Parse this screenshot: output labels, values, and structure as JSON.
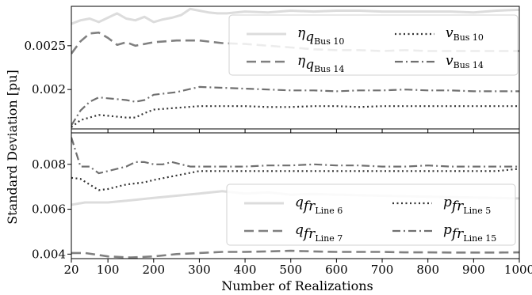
{
  "chart_data": {
    "type": "line",
    "xlabel": "Number of Realizations",
    "ylabel": "Standard Deviation [pu]",
    "xlim": [
      20,
      1000
    ],
    "xticks": [
      20,
      100,
      200,
      300,
      400,
      500,
      600,
      700,
      800,
      900,
      1000
    ],
    "panels": [
      {
        "id": "top",
        "ylim": [
          0.00155,
          0.00295
        ],
        "yticks": [
          {
            "value": 0.0025,
            "label": "0.0025"
          },
          {
            "value": 0.002,
            "label": "0.002"
          }
        ],
        "legend": {
          "placement": "upper-right",
          "columns": 2
        },
        "series": [
          {
            "main": "η",
            "sub": "q",
            "subsub": "Bus 10",
            "style": "solid",
            "color": "#dcdcdc",
            "x": [
              20,
              40,
              60,
              80,
              100,
              120,
              140,
              160,
              180,
              200,
              220,
              240,
              260,
              280,
              300,
              320,
              340,
              360,
              380,
              400,
              450,
              500,
              550,
              600,
              650,
              700,
              750,
              800,
              850,
              900,
              950,
              1000
            ],
            "y": [
              0.00275,
              0.00279,
              0.00281,
              0.00277,
              0.00282,
              0.00287,
              0.00281,
              0.00279,
              0.00283,
              0.00277,
              0.0028,
              0.00282,
              0.00285,
              0.00292,
              0.0029,
              0.00288,
              0.00287,
              0.00287,
              0.00288,
              0.00289,
              0.00288,
              0.0029,
              0.00289,
              0.0029,
              0.0029,
              0.00289,
              0.00289,
              0.00289,
              0.00289,
              0.00288,
              0.0029,
              0.00291
            ]
          },
          {
            "main": "v",
            "sub": "Bus 10",
            "subsub": "",
            "style": "dotted",
            "color": "#333333",
            "x": [
              20,
              40,
              60,
              80,
              100,
              120,
              140,
              160,
              180,
              200,
              250,
              300,
              350,
              400,
              450,
              500,
              550,
              600,
              650,
              700,
              750,
              800,
              850,
              900,
              950,
              1000
            ],
            "y": [
              0.00157,
              0.00165,
              0.00168,
              0.00171,
              0.0017,
              0.00169,
              0.00168,
              0.00168,
              0.00173,
              0.00177,
              0.00179,
              0.00181,
              0.00181,
              0.00181,
              0.0018,
              0.0018,
              0.00181,
              0.00181,
              0.0018,
              0.00181,
              0.00181,
              0.00181,
              0.00181,
              0.00181,
              0.00181,
              0.00181
            ]
          },
          {
            "main": "η",
            "sub": "q",
            "subsub": "Bus 14",
            "style": "dashed",
            "color": "#808080",
            "x": [
              20,
              40,
              60,
              80,
              100,
              120,
              140,
              160,
              180,
              200,
              250,
              300,
              350,
              400,
              450,
              500,
              550,
              600,
              650,
              700,
              750,
              800,
              850,
              900,
              950,
              1000
            ],
            "y": [
              0.00241,
              0.00255,
              0.00264,
              0.00265,
              0.00259,
              0.00251,
              0.00254,
              0.0025,
              0.00252,
              0.00254,
              0.00256,
              0.00256,
              0.00253,
              0.00252,
              0.0025,
              0.00248,
              0.00246,
              0.00245,
              0.00245,
              0.00244,
              0.00245,
              0.00244,
              0.00244,
              0.00244,
              0.00244,
              0.00244
            ]
          },
          {
            "main": "v",
            "sub": "Bus 14",
            "subsub": "",
            "style": "dashdot",
            "color": "#707070",
            "x": [
              20,
              40,
              60,
              80,
              100,
              120,
              140,
              160,
              180,
              200,
              250,
              300,
              350,
              400,
              450,
              500,
              550,
              600,
              650,
              700,
              750,
              800,
              850,
              900,
              950,
              1000
            ],
            "y": [
              0.00159,
              0.00176,
              0.00186,
              0.00191,
              0.0019,
              0.00189,
              0.00188,
              0.00186,
              0.00188,
              0.00194,
              0.00197,
              0.00203,
              0.00202,
              0.00201,
              0.002,
              0.00199,
              0.00199,
              0.00198,
              0.00199,
              0.00199,
              0.002,
              0.00199,
              0.00199,
              0.00198,
              0.00198,
              0.00198
            ]
          }
        ]
      },
      {
        "id": "bottom",
        "ylim": [
          0.0038,
          0.0094
        ],
        "yticks": [
          {
            "value": 0.008,
            "label": "0.008"
          },
          {
            "value": 0.006,
            "label": "0.006"
          },
          {
            "value": 0.004,
            "label": "0.004"
          }
        ],
        "legend": {
          "placement": "lower-right",
          "columns": 2
        },
        "series": [
          {
            "main": "q",
            "sub": "fr",
            "subsub": "Line 6",
            "style": "solid",
            "color": "#dcdcdc",
            "x": [
              20,
              50,
              100,
              150,
              200,
              250,
              300,
              350,
              400,
              450,
              500,
              550,
              600,
              650,
              700,
              750,
              800,
              850,
              900,
              950,
              1000
            ],
            "y": [
              0.0062,
              0.0063,
              0.0063,
              0.0064,
              0.0065,
              0.0066,
              0.0067,
              0.0068,
              0.0067,
              0.00675,
              0.00665,
              0.00668,
              0.00665,
              0.00662,
              0.0066,
              0.00658,
              0.00656,
              0.00654,
              0.00652,
              0.0065,
              0.00648
            ]
          },
          {
            "main": "p",
            "sub": "fr",
            "subsub": "Line 5",
            "style": "dotted",
            "color": "#333333",
            "x": [
              20,
              40,
              60,
              80,
              100,
              120,
              140,
              160,
              180,
              200,
              250,
              300,
              350,
              400,
              450,
              500,
              550,
              600,
              650,
              700,
              750,
              800,
              850,
              900,
              950,
              1000
            ],
            "y": [
              0.0074,
              0.00735,
              0.0071,
              0.00685,
              0.0069,
              0.007,
              0.0071,
              0.00715,
              0.0072,
              0.0073,
              0.0075,
              0.0077,
              0.0077,
              0.0077,
              0.0077,
              0.0077,
              0.0077,
              0.0077,
              0.0077,
              0.0077,
              0.0077,
              0.0077,
              0.0077,
              0.0077,
              0.0077,
              0.0078
            ]
          },
          {
            "main": "q",
            "sub": "fr",
            "subsub": "Line 7",
            "style": "dashed",
            "color": "#808080",
            "x": [
              20,
              50,
              100,
              150,
              200,
              250,
              300,
              350,
              400,
              450,
              500,
              550,
              600,
              650,
              700,
              750,
              800,
              850,
              900,
              950,
              1000
            ],
            "y": [
              0.00405,
              0.00405,
              0.0039,
              0.00385,
              0.0039,
              0.004,
              0.00405,
              0.0041,
              0.0041,
              0.00412,
              0.00415,
              0.00412,
              0.0041,
              0.0041,
              0.0041,
              0.00408,
              0.00408,
              0.00407,
              0.00407,
              0.00407,
              0.00408
            ]
          },
          {
            "main": "p",
            "sub": "fr",
            "subsub": "Line 15",
            "style": "dashdot",
            "color": "#707070",
            "x": [
              20,
              40,
              60,
              80,
              100,
              120,
              140,
              160,
              180,
              200,
              220,
              240,
              260,
              280,
              300,
              350,
              400,
              450,
              500,
              550,
              600,
              650,
              700,
              750,
              800,
              850,
              900,
              950,
              1000
            ],
            "y": [
              0.0092,
              0.0079,
              0.0079,
              0.0076,
              0.0077,
              0.0078,
              0.0079,
              0.0081,
              0.0081,
              0.008,
              0.008,
              0.0081,
              0.008,
              0.0079,
              0.0079,
              0.0079,
              0.0079,
              0.00795,
              0.00795,
              0.008,
              0.00795,
              0.00795,
              0.0079,
              0.0079,
              0.00795,
              0.0079,
              0.0079,
              0.0079,
              0.0079
            ]
          }
        ]
      }
    ]
  }
}
